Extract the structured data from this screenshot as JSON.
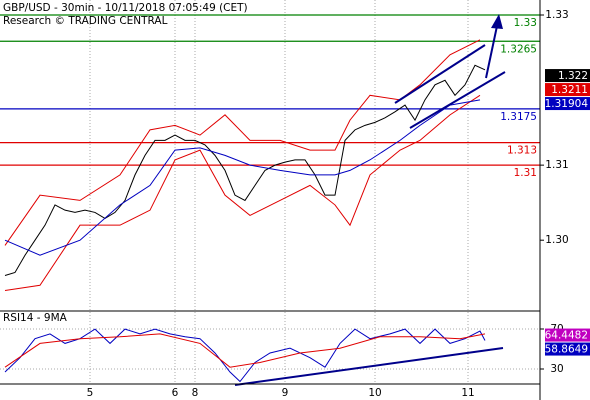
{
  "chart_data": [
    {
      "type": "line",
      "title": "GBP/USD - 30min - 10/11/2018 07:05:49 (CET)",
      "subtitle": "Research © TRADING CENTRAL",
      "xlim": [
        0,
        108
      ],
      "xticks": [
        {
          "value": 18,
          "label": "5"
        },
        {
          "value": 35,
          "label": "6"
        },
        {
          "value": 39,
          "label": "8"
        },
        {
          "value": 57,
          "label": "9"
        },
        {
          "value": 75,
          "label": "10"
        },
        {
          "value": 93.6,
          "label": "11"
        }
      ],
      "ylim": [
        1.2907,
        1.332
      ],
      "yticks": [
        {
          "value": 1.3,
          "label": "1.30"
        },
        1.31,
        1.33
      ],
      "series": [
        {
          "color": "#000000",
          "x": [
            1,
            3,
            5,
            7,
            9,
            11,
            13,
            15,
            17,
            19,
            21,
            23,
            25,
            27,
            29,
            31,
            33,
            35,
            37,
            39,
            41,
            43,
            45,
            47,
            49,
            51,
            53,
            55,
            57,
            59,
            61,
            63,
            65,
            67,
            69,
            71,
            73,
            75,
            77,
            79,
            81,
            83,
            85,
            87,
            89,
            91,
            93,
            95,
            97
          ],
          "values": [
            1.2953,
            1.2957,
            1.298,
            1.3,
            1.302,
            1.3047,
            1.304,
            1.3037,
            1.304,
            1.3037,
            1.3029,
            1.3037,
            1.3053,
            1.3087,
            1.3113,
            1.3133,
            1.3133,
            1.314,
            1.3133,
            1.3133,
            1.3127,
            1.3113,
            1.3093,
            1.306,
            1.3053,
            1.3073,
            1.3093,
            1.31,
            1.3104,
            1.3107,
            1.3107,
            1.3087,
            1.306,
            1.306,
            1.3133,
            1.3147,
            1.3153,
            1.3157,
            1.3163,
            1.3171,
            1.318,
            1.316,
            1.3187,
            1.3207,
            1.3213,
            1.3193,
            1.3207,
            1.3233,
            1.3227
          ]
        },
        {
          "color": "#e00000",
          "x": [
            1,
            8,
            16,
            24,
            30,
            35,
            40,
            45,
            50,
            56,
            62,
            67,
            70,
            74,
            80,
            84,
            90,
            96
          ],
          "values": [
            1.2993,
            1.306,
            1.3053,
            1.3087,
            1.3147,
            1.3153,
            1.314,
            1.3167,
            1.3133,
            1.3133,
            1.312,
            1.312,
            1.316,
            1.3193,
            1.3187,
            1.3207,
            1.3247,
            1.3267
          ]
        },
        {
          "color": "#e00000",
          "x": [
            1,
            8,
            16,
            24,
            30,
            35,
            40,
            45,
            50,
            56,
            62,
            67,
            70,
            74,
            80,
            84,
            90,
            96
          ],
          "values": [
            1.2933,
            1.294,
            1.302,
            1.302,
            1.304,
            1.3107,
            1.312,
            1.306,
            1.3033,
            1.3053,
            1.3073,
            1.3047,
            1.302,
            1.3087,
            1.312,
            1.3133,
            1.3167,
            1.3193
          ]
        },
        {
          "color": "#0000c0",
          "x": [
            1,
            8,
            16,
            24,
            30,
            35,
            40,
            45,
            50,
            56,
            62,
            67,
            70,
            74,
            80,
            84,
            90,
            96
          ],
          "values": [
            1.3,
            1.298,
            1.3,
            1.3047,
            1.3073,
            1.312,
            1.3123,
            1.3113,
            1.31,
            1.3093,
            1.3087,
            1.3087,
            1.3093,
            1.3107,
            1.3133,
            1.3153,
            1.318,
            1.3187
          ]
        }
      ],
      "levels": [
        {
          "value": 1.33,
          "color": "#008000"
        },
        {
          "value": 1.3265,
          "color": "#008000"
        },
        {
          "value": 1.3175,
          "color": "#0000c0"
        },
        {
          "value": 1.313,
          "color": "#e00000"
        },
        {
          "value": 1.31,
          "color": "#e00000"
        }
      ],
      "last_values": [
        {
          "value": 1.322,
          "color": "#000000"
        },
        {
          "value": 1.3211,
          "color": "#e00000"
        },
        {
          "value": 1.31904,
          "color": "#0000c0"
        }
      ]
    },
    {
      "type": "line",
      "title": "RSI14 - 9MA",
      "xlim": [
        0,
        108
      ],
      "ylim": [
        3,
        87
      ],
      "yticks": [
        30,
        70
      ],
      "series": [
        {
          "color": "#0000c0",
          "x": [
            1,
            4,
            7,
            10,
            13,
            16,
            19,
            22,
            25,
            28,
            31,
            34,
            37,
            40,
            43,
            46,
            48,
            51,
            54,
            58,
            62,
            65,
            68,
            71,
            74,
            78,
            81,
            84,
            87,
            90,
            93,
            96,
            97
          ],
          "values": [
            27,
            41.3,
            60.3,
            65.1,
            55.6,
            60.3,
            69.9,
            55.6,
            69.9,
            65.1,
            69.9,
            65.1,
            62.2,
            60.3,
            46,
            27,
            17.5,
            36.5,
            46,
            50.8,
            41.3,
            31.8,
            55.6,
            69.9,
            60.3,
            65.1,
            69.9,
            55.6,
            69.9,
            55.6,
            60.3,
            67.9,
            58.5
          ]
        },
        {
          "color": "#e00000",
          "x": [
            1,
            8,
            16,
            24,
            32,
            40,
            46,
            52,
            60,
            68,
            76,
            84,
            92,
            97
          ],
          "values": [
            31.8,
            55.6,
            60.3,
            62.2,
            65.1,
            55.6,
            31.8,
            36.5,
            46,
            50.8,
            62.2,
            62.2,
            60.3,
            65.1
          ]
        }
      ],
      "last_values": [
        {
          "value": 64.4482,
          "color": "#c000c0"
        },
        {
          "value": 58.8649,
          "color": "#0000c0"
        }
      ]
    }
  ]
}
